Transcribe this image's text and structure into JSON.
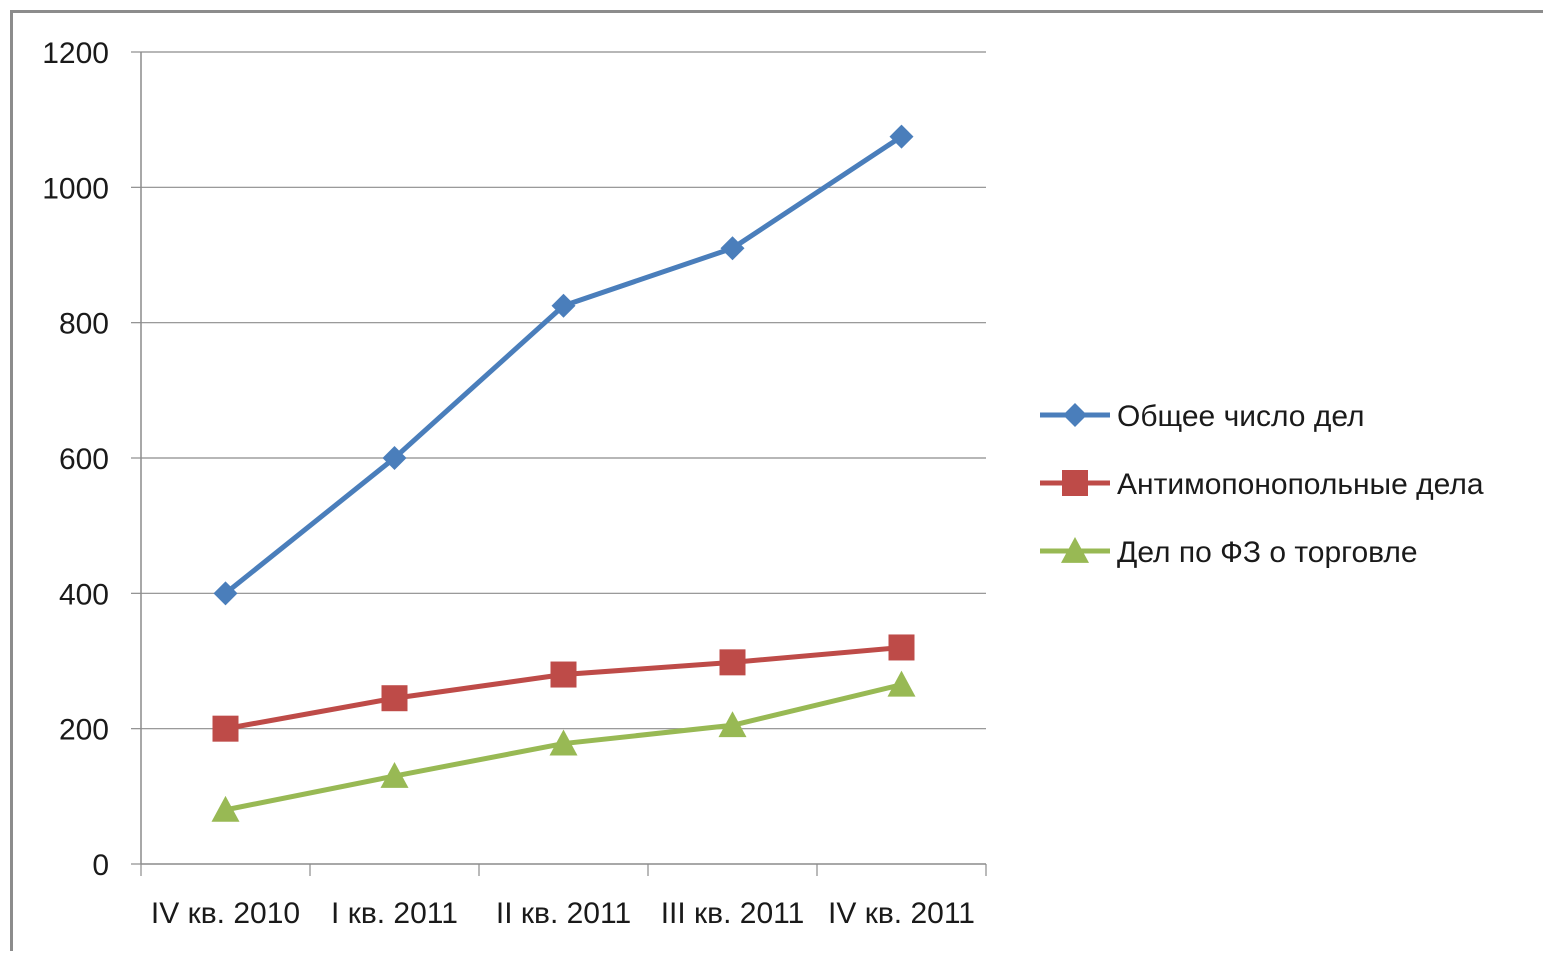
{
  "chart_data": {
    "type": "line",
    "title": "",
    "xlabel": "",
    "ylabel": "",
    "categories": [
      "IV кв. 2010",
      "I кв. 2011",
      "II кв. 2011",
      "III кв. 2011",
      "IV кв. 2011"
    ],
    "ylim": [
      0,
      1200
    ],
    "yticks": [
      "0",
      "200",
      "400",
      "600",
      "800",
      "1000",
      "1200"
    ],
    "grid": true,
    "legend_position": "right",
    "series": [
      {
        "name": "Общее число дел",
        "values": [
          400,
          600,
          825,
          910,
          1075
        ],
        "color": "#4a7ebb",
        "marker": "diamond"
      },
      {
        "name": "Антимопонопольные дела",
        "values": [
          200,
          245,
          280,
          298,
          320
        ],
        "color": "#be4b48",
        "marker": "square"
      },
      {
        "name": "Дел по ФЗ о торговле",
        "values": [
          80,
          130,
          178,
          205,
          265
        ],
        "color": "#98b954",
        "marker": "triangle"
      }
    ]
  }
}
